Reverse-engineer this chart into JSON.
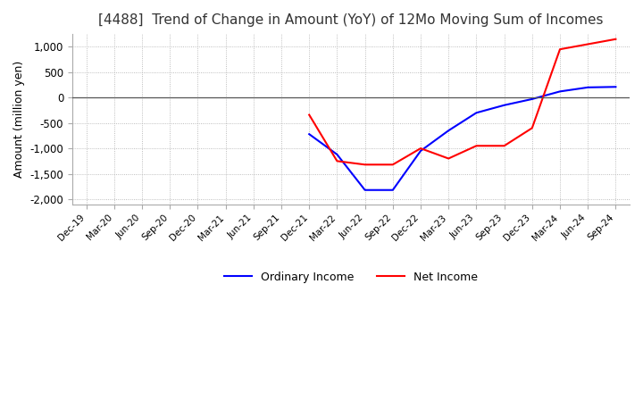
{
  "title": "[4488]  Trend of Change in Amount (YoY) of 12Mo Moving Sum of Incomes",
  "ylabel": "Amount (million yen)",
  "ylim": [
    -2100,
    1250
  ],
  "yticks": [
    -2000,
    -1500,
    -1000,
    -500,
    0,
    500,
    1000
  ],
  "x_labels": [
    "Dec-19",
    "Mar-20",
    "Jun-20",
    "Sep-20",
    "Dec-20",
    "Mar-21",
    "Jun-21",
    "Sep-21",
    "Dec-21",
    "Mar-22",
    "Jun-22",
    "Sep-22",
    "Dec-22",
    "Mar-23",
    "Jun-23",
    "Sep-23",
    "Dec-23",
    "Mar-24",
    "Jun-24",
    "Sep-24"
  ],
  "ordinary_income": [
    null,
    null,
    null,
    null,
    null,
    null,
    null,
    null,
    -720,
    -1120,
    -1820,
    -1820,
    -1050,
    -650,
    -300,
    -150,
    -30,
    120,
    200,
    210
  ],
  "net_income": [
    null,
    null,
    null,
    null,
    null,
    null,
    null,
    null,
    -340,
    -1250,
    -1320,
    -1320,
    -1000,
    -1200,
    -950,
    -950,
    -600,
    950,
    1050,
    1150
  ],
  "ordinary_color": "#0000ff",
  "net_color": "#ff0000",
  "background_color": "#ffffff",
  "grid_color": "#aaaaaa",
  "title_fontsize": 11,
  "legend_labels": [
    "Ordinary Income",
    "Net Income"
  ]
}
